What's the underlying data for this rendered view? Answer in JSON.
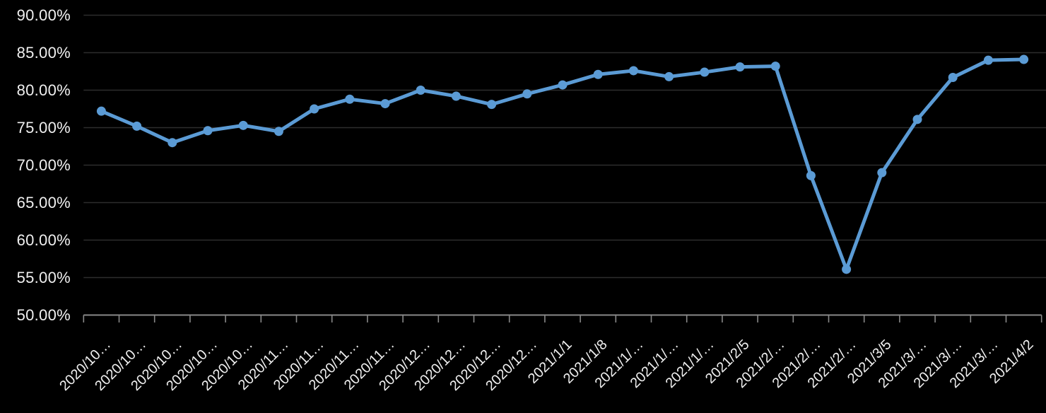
{
  "chart_data": {
    "type": "line",
    "title": "",
    "series_name": "",
    "legend": "none",
    "grid": true,
    "x_tick_labels": [
      "2020/10…",
      "2020/10…",
      "2020/10…",
      "2020/10…",
      "2020/10…",
      "2020/11…",
      "2020/11…",
      "2020/11…",
      "2020/11…",
      "2020/12…",
      "2020/12…",
      "2020/12…",
      "2020/12…",
      "2021/1/1",
      "2021/1/8",
      "2021/1/…",
      "2021/1/…",
      "2021/1/…",
      "2021/2/5",
      "2021/2/…",
      "2021/2/…",
      "2021/2/…",
      "2021/3/5",
      "2021/3/…",
      "2021/3/…",
      "2021/3/…",
      "2021/4/2"
    ],
    "values_percent": [
      77.2,
      75.2,
      73.0,
      74.6,
      75.3,
      74.5,
      77.5,
      78.8,
      78.2,
      80.0,
      79.2,
      78.1,
      79.5,
      80.7,
      82.1,
      82.6,
      81.8,
      82.4,
      83.1,
      83.2,
      68.6,
      56.1,
      69.0,
      76.1,
      81.7,
      84.0,
      84.1
    ],
    "y_tick_labels": [
      "90.00%",
      "85.00%",
      "80.00%",
      "75.00%",
      "70.00%",
      "65.00%",
      "60.00%",
      "55.00%",
      "50.00%"
    ],
    "ylim": [
      50,
      90
    ],
    "y_step": 5,
    "colors": {
      "background": "#000000",
      "line": "#5b9bd5",
      "marker": "#5b9bd5",
      "gridline": "#2d2d2d",
      "axis": "#898989",
      "tick_text": "#f0f0f0"
    }
  }
}
